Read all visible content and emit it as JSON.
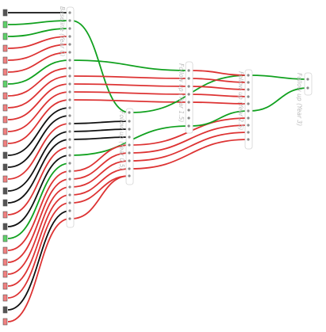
{
  "diagram": {
    "stages": [
      {
        "id": "s0",
        "label": "Baseline (Year 0)"
      },
      {
        "id": "s1",
        "label": "Follow up (Year 0.5)"
      },
      {
        "id": "s2",
        "label": "Follow up (Year 1.5)"
      },
      {
        "id": "s3",
        "label": "Follow up (Year 2.5)"
      },
      {
        "id": "s4",
        "label": "Follow up (Year 3)"
      }
    ],
    "colors": {
      "red": "#dd3333",
      "green": "#11a11f",
      "black": "#111111",
      "red_square": "#f08080",
      "green_square": "#5fd16a",
      "black_square": "#555555"
    },
    "sources": [
      "black",
      "green",
      "green",
      "red",
      "red",
      "red",
      "green",
      "red",
      "red",
      "red",
      "red",
      "red",
      "black",
      "black",
      "red",
      "black",
      "black",
      "red",
      "black",
      "green",
      "red",
      "red",
      "red",
      "red",
      "red",
      "black",
      "red"
    ],
    "links": [
      {
        "color": "black",
        "stage": "s0"
      },
      {
        "color": "green",
        "stage": "s0"
      },
      {
        "color": "green",
        "stage": "s0"
      },
      {
        "color": "red",
        "stage": "s0"
      },
      {
        "color": "red",
        "stage": "s0"
      },
      {
        "color": "red",
        "stage": "s0"
      },
      {
        "color": "green",
        "stage": "s0"
      },
      {
        "color": "red",
        "stage": "s0"
      },
      {
        "color": "red",
        "stage": "s0"
      },
      {
        "color": "red",
        "stage": "s0"
      },
      {
        "color": "red",
        "stage": "s0"
      },
      {
        "color": "red",
        "stage": "s0"
      },
      {
        "color": "black",
        "stage": "s0"
      },
      {
        "color": "black",
        "stage": "s0"
      },
      {
        "color": "red",
        "stage": "s0"
      },
      {
        "color": "black",
        "stage": "s0"
      },
      {
        "color": "black",
        "stage": "s0"
      },
      {
        "color": "red",
        "stage": "s0"
      },
      {
        "color": "black",
        "stage": "s0"
      },
      {
        "color": "green",
        "stage": "s0"
      },
      {
        "color": "red",
        "stage": "s0"
      },
      {
        "color": "red",
        "stage": "s0"
      },
      {
        "color": "red",
        "stage": "s0"
      },
      {
        "color": "red",
        "stage": "s0"
      },
      {
        "color": "red",
        "stage": "s0"
      },
      {
        "color": "black",
        "stage": "s0"
      },
      {
        "color": "red",
        "stage": "s0"
      },
      {
        "color": "green",
        "stage": "s1"
      },
      {
        "color": "green",
        "stage": "s2"
      },
      {
        "color": "red",
        "stage": "s2"
      },
      {
        "color": "red",
        "stage": "s2"
      },
      {
        "color": "red",
        "stage": "s2"
      },
      {
        "color": "red",
        "stage": "s2"
      },
      {
        "color": "black",
        "stage": "s1"
      },
      {
        "color": "black",
        "stage": "s1"
      },
      {
        "color": "black",
        "stage": "s1"
      },
      {
        "color": "green",
        "stage": "s2"
      },
      {
        "color": "red",
        "stage": "s1"
      },
      {
        "color": "red",
        "stage": "s1"
      },
      {
        "color": "red",
        "stage": "s1"
      },
      {
        "color": "red",
        "stage": "s1"
      },
      {
        "color": "red",
        "stage": "s1"
      },
      {
        "color": "red",
        "stage": "s1"
      },
      {
        "color": "green",
        "stage": "s3"
      },
      {
        "color": "red",
        "stage": "s3"
      },
      {
        "color": "red",
        "stage": "s3"
      },
      {
        "color": "red",
        "stage": "s3"
      },
      {
        "color": "red",
        "stage": "s3"
      },
      {
        "color": "green",
        "stage": "s3"
      },
      {
        "color": "red",
        "stage": "s2"
      },
      {
        "color": "red",
        "stage": "s2"
      },
      {
        "color": "red",
        "stage": "s3"
      },
      {
        "color": "red",
        "stage": "s3"
      },
      {
        "color": "red",
        "stage": "s3"
      },
      {
        "color": "green",
        "stage": "s4"
      },
      {
        "color": "green",
        "stage": "s4"
      }
    ]
  }
}
